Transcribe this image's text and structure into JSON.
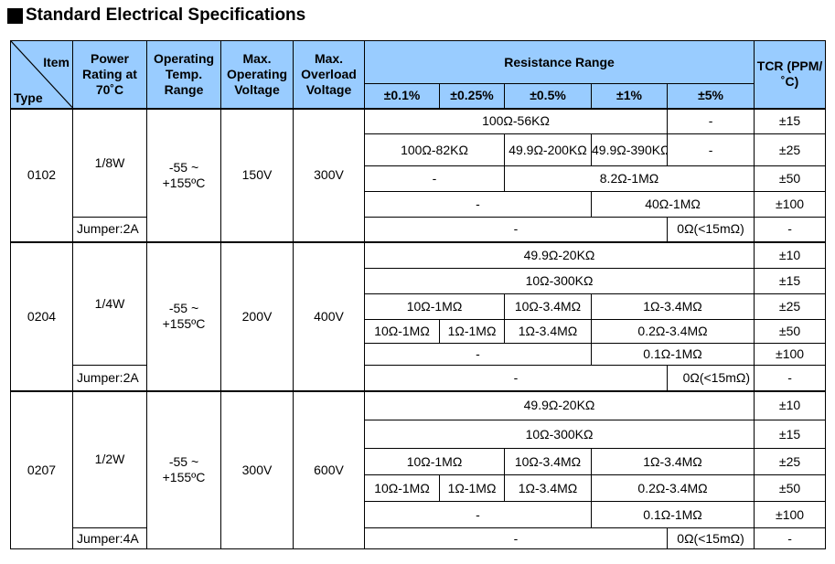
{
  "title": "Standard Electrical Specifications",
  "headers": {
    "item": "Item",
    "type": "Type",
    "power": "Power Rating at 70˚C",
    "temp": "Operating Temp. Range",
    "op_voltage": "Max. Operating Voltage",
    "ov_voltage": "Max. Overload Voltage",
    "resistance": "Resistance Range",
    "tcr": "TCR (PPM/˚C)",
    "tol": [
      "±0.1%",
      "±0.25%",
      "±0.5%",
      "±1%",
      "±5%"
    ]
  },
  "groups": [
    {
      "type": "0102",
      "power": "1/8W",
      "temp": "-55 ~ +155ºC",
      "op_v": "150V",
      "ov_v": "300V",
      "jumper": "Jumper:2A",
      "rows": [
        {
          "cells": [
            "100Ω-56KΩ",
            "-"
          ],
          "tcr": "±15"
        },
        {
          "cells": [
            "100Ω-82KΩ",
            "49.9Ω-200KΩ",
            "49.9Ω-390KΩ",
            "-"
          ],
          "tcr": "±25"
        },
        {
          "cells": [
            "-",
            "8.2Ω-1MΩ"
          ],
          "tcr": "±50"
        },
        {
          "cells": [
            "-",
            "40Ω-1MΩ"
          ],
          "tcr": "±100"
        },
        {
          "cells": [
            "-",
            "0Ω(<15mΩ)"
          ],
          "tcr": "-"
        }
      ]
    },
    {
      "type": "0204",
      "power": "1/4W",
      "temp": "-55 ~ +155ºC",
      "op_v": "200V",
      "ov_v": "400V",
      "jumper": "Jumper:2A",
      "rows": [
        {
          "cells": [
            "49.9Ω-20KΩ"
          ],
          "tcr": "±10"
        },
        {
          "cells": [
            "10Ω-300KΩ"
          ],
          "tcr": "±15"
        },
        {
          "cells": [
            "10Ω-1MΩ",
            "10Ω-3.4MΩ",
            "1Ω-3.4MΩ"
          ],
          "tcr": "±25"
        },
        {
          "cells": [
            "10Ω-1MΩ",
            "1Ω-1MΩ",
            "1Ω-3.4MΩ",
            "0.2Ω-3.4MΩ"
          ],
          "tcr": "±50"
        },
        {
          "cells": [
            "-",
            "0.1Ω-1MΩ"
          ],
          "tcr": "±100"
        },
        {
          "cells": [
            "-",
            "0Ω(<15mΩ)"
          ],
          "tcr": "-"
        }
      ]
    },
    {
      "type": "0207",
      "power": "1/2W",
      "temp": "-55 ~ +155ºC",
      "op_v": "300V",
      "ov_v": "600V",
      "jumper": "Jumper:4A",
      "rows": [
        {
          "cells": [
            "49.9Ω-20KΩ"
          ],
          "tcr": "±10"
        },
        {
          "cells": [
            "10Ω-300KΩ"
          ],
          "tcr": "±15"
        },
        {
          "cells": [
            "10Ω-1MΩ",
            "10Ω-3.4MΩ",
            "1Ω-3.4MΩ"
          ],
          "tcr": "±25"
        },
        {
          "cells": [
            "10Ω-1MΩ",
            "1Ω-1MΩ",
            "1Ω-3.4MΩ",
            "0.2Ω-3.4MΩ"
          ],
          "tcr": "±50"
        },
        {
          "cells": [
            "-",
            "0.1Ω-1MΩ"
          ],
          "tcr": "±100"
        },
        {
          "cells": [
            "-",
            "0Ω(<15mΩ)"
          ],
          "tcr": "-"
        }
      ]
    }
  ]
}
